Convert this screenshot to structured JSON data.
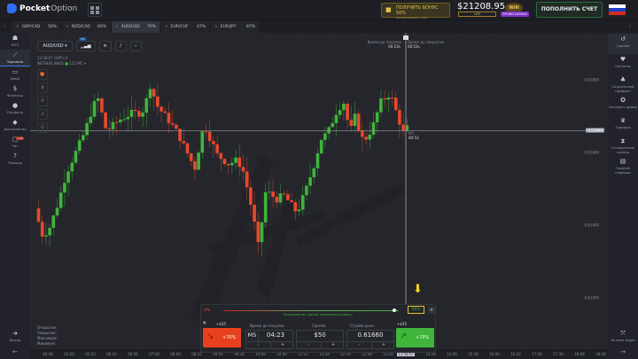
{
  "header": {
    "brand_bold": "Pocket",
    "brand_light": "Option",
    "bonus_title": "ПОЛУЧИТЬ БОНУС 50%",
    "bonus_sub": "на пополнение от $50",
    "balance": "$21208.95",
    "account_type": "LIVE",
    "status_badge": "WIN",
    "status_label": "ПРОФЕССИОНАЛ",
    "deposit_label": "ПОПОЛНИТЬ СЧЕТ"
  },
  "tabs": [
    {
      "pair": "GBP/CAD",
      "pct": "58%"
    },
    {
      "pair": "NZD/CAD",
      "pct": "60%"
    },
    {
      "pair": "AUD/USD",
      "pct": "70%",
      "active": true
    },
    {
      "pair": "EUR/CHF",
      "pct": "47%"
    },
    {
      "pair": "EUR/JPY",
      "pct": "87%"
    }
  ],
  "left_nav": [
    {
      "icon": "users-icon",
      "label": "MT5"
    },
    {
      "icon": "chart-icon",
      "label": "Торговля",
      "active": true
    },
    {
      "icon": "wallet-icon",
      "label": "Демо"
    },
    {
      "icon": "dollar-icon",
      "label": "Финансы"
    },
    {
      "icon": "user-icon",
      "label": "Профиль"
    },
    {
      "icon": "diamond-icon",
      "label": "Достижения"
    },
    {
      "icon": "chat-icon",
      "label": "Чат",
      "badge": "1.2k"
    },
    {
      "icon": "help-icon",
      "label": "Помощь"
    }
  ],
  "left_bottom": {
    "logout": "Выход"
  },
  "right_nav": [
    {
      "icon": "history-icon",
      "label": "Сделки"
    },
    {
      "icon": "signal-icon",
      "label": "Сигналы"
    },
    {
      "icon": "social-icon",
      "label": "Социальный трейдинг"
    },
    {
      "icon": "express-icon",
      "label": "Экспресс-ордер"
    },
    {
      "icon": "trophy-icon",
      "label": "Турниры"
    },
    {
      "icon": "hourglass-icon",
      "label": "Отложенные сделки"
    },
    {
      "icon": "hotkeys-icon",
      "label": "Горячие клавиши"
    }
  ],
  "right_bottom": {
    "fullscreen": "На весь экран"
  },
  "toolbar": {
    "pair": "AUD/USD",
    "badge": "M5"
  },
  "chart_info": {
    "clock": "13:58:07 GMT+2",
    "exchange": "NETHERLANDS",
    "ping": "152 MC"
  },
  "side_tools": [
    "🎁",
    "B",
    "R",
    "A",
    "G"
  ],
  "ohlc_labels": [
    "Открытие:",
    "Закрытие:",
    "Максимум:",
    "Минимум:"
  ],
  "timer": {
    "buy_label": "Время до покупки",
    "buy_value": "00:23s.",
    "close_label": "Время до закрытия",
    "close_value": "00:53s.",
    "tf": "M5",
    "countdown": "00:53"
  },
  "colors": {
    "up": "#3fb53a",
    "down": "#e8492c",
    "accent": "#3d7bea"
  },
  "chart_data": {
    "type": "candlestick",
    "y_ticks": [
      "0.61800",
      "0.61600",
      "0.61400",
      "0.61200"
    ],
    "ylim": [
      0.6114,
      0.6203
    ],
    "current_price": "0.61660",
    "x_ticks": [
      "04:48",
      "05:20",
      "05:52",
      "06:24",
      "06:56",
      "07:28",
      "08:00",
      "08:32",
      "09:04",
      "09:36",
      "10:08",
      "10:40",
      "11:12",
      "11:44",
      "12:16",
      "12:48",
      "13:20",
      "14:24",
      "14:56",
      "15:28",
      "16:00",
      "16:32",
      "17:04",
      "17:36",
      "18:08",
      "18:40"
    ],
    "cursor_time": "13:58:07",
    "close_path": [
      [
        "04:29",
        0.61446
      ],
      [
        "04:39",
        0.61373
      ],
      [
        "04:49",
        0.61385
      ],
      [
        "05:03",
        0.61458
      ],
      [
        "05:16",
        0.61544
      ],
      [
        "05:43",
        0.61654
      ],
      [
        "05:56",
        0.61727
      ],
      [
        "06:03",
        0.61751
      ],
      [
        "06:16",
        0.61659
      ],
      [
        "06:36",
        0.6169
      ],
      [
        "06:56",
        0.6171
      ],
      [
        "07:09",
        0.61707
      ],
      [
        "07:16",
        0.61739
      ],
      [
        "07:20",
        0.61795
      ],
      [
        "07:33",
        0.61727
      ],
      [
        "07:47",
        0.61695
      ],
      [
        "08:03",
        0.61654
      ],
      [
        "08:16",
        0.61605
      ],
      [
        "08:29",
        0.61556
      ],
      [
        "08:43",
        0.61678
      ],
      [
        "09:03",
        0.61593
      ],
      [
        "09:20",
        0.61568
      ],
      [
        "09:33",
        0.6158
      ],
      [
        "09:43",
        0.61544
      ],
      [
        "09:56",
        0.61434
      ],
      [
        "10:05",
        0.61337
      ],
      [
        "10:16",
        0.61495
      ],
      [
        "10:32",
        0.61471
      ],
      [
        "10:43",
        0.61483
      ],
      [
        "11:03",
        0.61434
      ],
      [
        "11:16",
        0.61495
      ],
      [
        "11:29",
        0.61568
      ],
      [
        "11:39",
        0.61637
      ],
      [
        "11:49",
        0.61654
      ],
      [
        "12:03",
        0.61715
      ],
      [
        "12:13",
        0.61739
      ],
      [
        "12:23",
        0.61654
      ],
      [
        "12:29",
        0.61703
      ],
      [
        "12:43",
        0.61629
      ],
      [
        "12:56",
        0.61666
      ],
      [
        "13:09",
        0.61739
      ],
      [
        "13:23",
        0.61763
      ],
      [
        "13:36",
        0.6169
      ],
      [
        "13:43",
        0.61654
      ],
      [
        "13:50",
        0.61671
      ]
    ]
  },
  "trade": {
    "sentiment_low": "4%",
    "sentiment_high": "96%",
    "sentiment_text": "Большинство сделок повышения (вверх)",
    "sentiment_value": 0.96,
    "payout_down": "+$35",
    "payout_up": "+$35",
    "down_pct": "+70%",
    "up_pct": "+70%",
    "time_label": "Время до покупки",
    "tf": "M5",
    "time": "04:23",
    "amount_label": "Сделка",
    "amount": "$50",
    "strike_label": "Страйк-цена",
    "strike": "0.61660",
    "minus": "-",
    "plus": "+"
  }
}
